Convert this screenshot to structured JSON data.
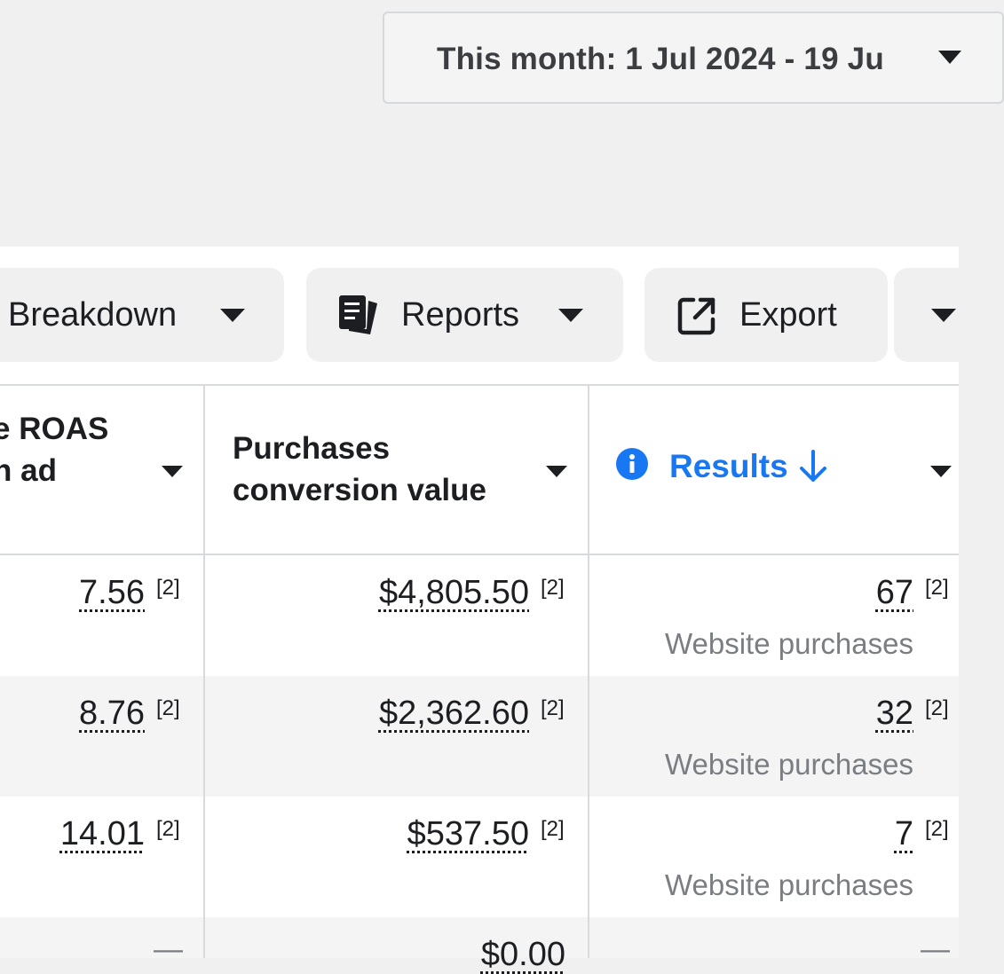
{
  "date_range": {
    "label": "This month: 1 Jul 2024 - 19 Ju"
  },
  "toolbar": {
    "breakdown_label": "Breakdown",
    "reports_label": "Reports",
    "export_label": "Export"
  },
  "table": {
    "headers": {
      "roas_line1": "e ROAS",
      "roas_line2": "n ad",
      "purchases_line1": "Purchases",
      "purchases_line2": "conversion value",
      "results": "Results"
    },
    "attribution_marker": "[2]",
    "rows": [
      {
        "roas": "7.56",
        "conversion_value": "$4,805.50",
        "results": "67",
        "results_type": "Website purchases"
      },
      {
        "roas": "8.76",
        "conversion_value": "$2,362.60",
        "results": "32",
        "results_type": "Website purchases"
      },
      {
        "roas": "14.01",
        "conversion_value": "$537.50",
        "results": "7",
        "results_type": "Website purchases"
      },
      {
        "roas": "—",
        "conversion_value": "$0.00",
        "results": "—",
        "results_type": ""
      }
    ]
  },
  "colors": {
    "accent": "#1877f2",
    "page_background": "#f0f0f0",
    "text_primary": "#1c1e21",
    "text_secondary": "#7a7d82"
  },
  "icons": {
    "date_caret": "caret-down-icon",
    "reports": "reports-icon",
    "export": "external-link-icon",
    "results_info": "info-icon",
    "sort": "arrow-down-icon"
  }
}
